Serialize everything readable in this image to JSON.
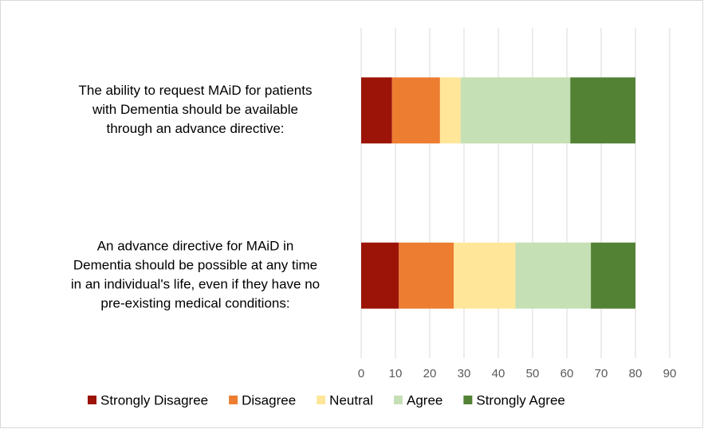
{
  "chart_data": {
    "type": "stacked-bar-horizontal",
    "categories": [
      [
        "The ability to request MAiD for patients",
        "with Dementia should be available",
        "through an advance directive:"
      ],
      [
        "An advance directive for MAiD in",
        "Dementia should be possible at any time",
        "in an individual's life, even if they have no",
        "pre-existing medical conditions:"
      ]
    ],
    "series": [
      {
        "name": "Strongly Disagree",
        "color": "#9b1407",
        "values": [
          9,
          11
        ]
      },
      {
        "name": "Disagree",
        "color": "#ed7d31",
        "values": [
          14,
          16
        ]
      },
      {
        "name": "Neutral",
        "color": "#ffe699",
        "values": [
          6,
          18
        ]
      },
      {
        "name": "Agree",
        "color": "#c5e0b4",
        "values": [
          32,
          22
        ]
      },
      {
        "name": "Strongly Agree",
        "color": "#548235",
        "values": [
          19,
          13
        ]
      }
    ],
    "xlim": [
      0,
      90
    ],
    "xticks": [
      0,
      10,
      20,
      30,
      40,
      50,
      60,
      70,
      80,
      90
    ],
    "grid": true,
    "legend": "bottom"
  }
}
